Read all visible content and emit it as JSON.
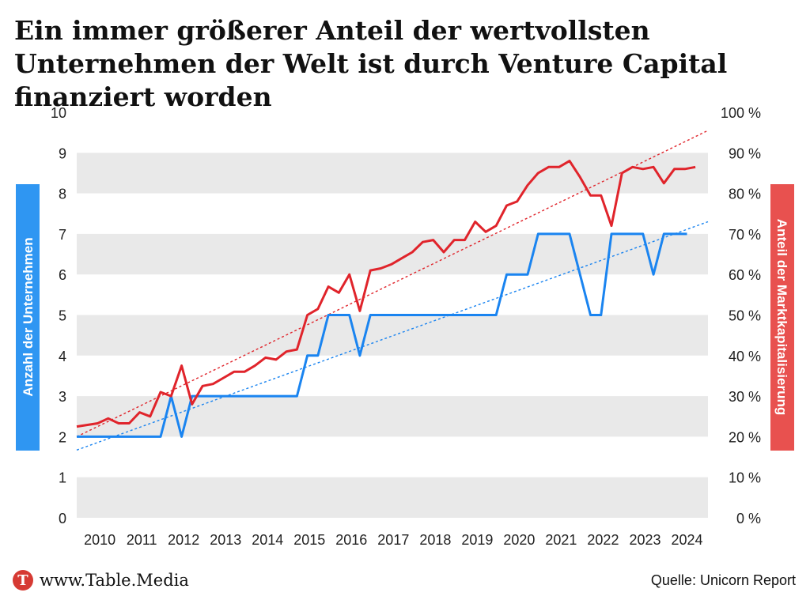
{
  "title": "Ein immer größerer Anteil der wertvollsten Unternehmen der Welt ist durch Venture Capital finanziert worden",
  "footer": {
    "brand_logo_letter": "T",
    "brand": "www.Table.Media",
    "source": "Quelle: Unicorn Report"
  },
  "colors": {
    "companies": "#1a84f0",
    "companies_label_bg": "#2f96f2",
    "share": "#e0242b",
    "share_label_bg": "#e8514f",
    "band": "#e9e9e9"
  },
  "chart_data": {
    "type": "line",
    "x_ticks": [
      "2010",
      "2011",
      "2012",
      "2013",
      "2014",
      "2015",
      "2016",
      "2017",
      "2018",
      "2019",
      "2020",
      "2021",
      "2022",
      "2023",
      "2024"
    ],
    "y_left": {
      "label": "Anzahl der Unternehmen",
      "ticks": [
        "0",
        "1",
        "2",
        "3",
        "4",
        "5",
        "6",
        "7",
        "8",
        "9",
        "10"
      ],
      "range": [
        0,
        10
      ]
    },
    "y_right": {
      "label": "Anteil der Marktkapitalisierung",
      "ticks": [
        "0 %",
        "10 %",
        "20 %",
        "30 %",
        "40 %",
        "50 %",
        "60 %",
        "70 %",
        "80 %",
        "90 %",
        "100 %"
      ],
      "range": [
        0,
        100
      ]
    },
    "x_range": [
      2009.75,
      2024.8
    ],
    "series": [
      {
        "name": "Anzahl der Unternehmen",
        "axis": "left",
        "points": [
          [
            2009.75,
            2
          ],
          [
            2011.75,
            2
          ],
          [
            2012.0,
            3
          ],
          [
            2012.25,
            2
          ],
          [
            2012.5,
            3
          ],
          [
            2015.0,
            3
          ],
          [
            2015.25,
            4
          ],
          [
            2015.5,
            4
          ],
          [
            2015.75,
            5
          ],
          [
            2016.25,
            5
          ],
          [
            2016.5,
            4
          ],
          [
            2016.75,
            5
          ],
          [
            2019.75,
            5
          ],
          [
            2020.0,
            6
          ],
          [
            2020.5,
            6
          ],
          [
            2020.75,
            7
          ],
          [
            2021.5,
            7
          ],
          [
            2022.0,
            5
          ],
          [
            2022.25,
            5
          ],
          [
            2022.5,
            7
          ],
          [
            2023.25,
            7
          ],
          [
            2023.5,
            6
          ],
          [
            2023.75,
            7
          ],
          [
            2024.3,
            7
          ]
        ]
      },
      {
        "name": "Anteil der Marktkapitalisierung",
        "axis": "right",
        "points": [
          [
            2009.75,
            22.5
          ],
          [
            2010.25,
            23.3
          ],
          [
            2010.5,
            24.5
          ],
          [
            2010.75,
            23.3
          ],
          [
            2011.0,
            23.3
          ],
          [
            2011.25,
            26.0
          ],
          [
            2011.5,
            25.0
          ],
          [
            2011.75,
            31.0
          ],
          [
            2012.0,
            30.0
          ],
          [
            2012.25,
            37.5
          ],
          [
            2012.5,
            28.0
          ],
          [
            2012.75,
            32.5
          ],
          [
            2013.0,
            33.0
          ],
          [
            2013.25,
            34.5
          ],
          [
            2013.5,
            36.0
          ],
          [
            2013.75,
            36.0
          ],
          [
            2014.0,
            37.5
          ],
          [
            2014.25,
            39.5
          ],
          [
            2014.5,
            39.0
          ],
          [
            2014.75,
            41.0
          ],
          [
            2015.0,
            41.5
          ],
          [
            2015.25,
            50.0
          ],
          [
            2015.5,
            51.5
          ],
          [
            2015.75,
            57.0
          ],
          [
            2016.0,
            55.5
          ],
          [
            2016.25,
            60.0
          ],
          [
            2016.5,
            51.0
          ],
          [
            2016.75,
            61.0
          ],
          [
            2017.0,
            61.5
          ],
          [
            2017.25,
            62.5
          ],
          [
            2017.5,
            64.0
          ],
          [
            2017.75,
            65.5
          ],
          [
            2018.0,
            68.0
          ],
          [
            2018.25,
            68.5
          ],
          [
            2018.5,
            65.5
          ],
          [
            2018.75,
            68.5
          ],
          [
            2019.0,
            68.5
          ],
          [
            2019.25,
            73.0
          ],
          [
            2019.5,
            70.5
          ],
          [
            2019.75,
            72.0
          ],
          [
            2020.0,
            77.0
          ],
          [
            2020.25,
            78.0
          ],
          [
            2020.5,
            82.0
          ],
          [
            2020.75,
            85.0
          ],
          [
            2021.0,
            86.5
          ],
          [
            2021.25,
            86.5
          ],
          [
            2021.5,
            88.0
          ],
          [
            2021.75,
            84.0
          ],
          [
            2022.0,
            79.5
          ],
          [
            2022.25,
            79.5
          ],
          [
            2022.5,
            72.0
          ],
          [
            2022.75,
            85.0
          ],
          [
            2023.0,
            86.5
          ],
          [
            2023.25,
            86.0
          ],
          [
            2023.5,
            86.5
          ],
          [
            2023.75,
            82.5
          ],
          [
            2024.0,
            86.0
          ],
          [
            2024.25,
            86.0
          ],
          [
            2024.5,
            86.5
          ]
        ]
      }
    ],
    "trendlines": [
      {
        "series": "Anzahl der Unternehmen",
        "axis": "left",
        "from": [
          2009.75,
          1.67
        ],
        "to": [
          2024.8,
          7.3
        ]
      },
      {
        "series": "Anteil der Marktkapitalisierung",
        "axis": "right",
        "from": [
          2009.75,
          20.0
        ],
        "to": [
          2024.8,
          95.5
        ]
      }
    ],
    "grid": "alternating horizontal bands",
    "legend": "none"
  }
}
